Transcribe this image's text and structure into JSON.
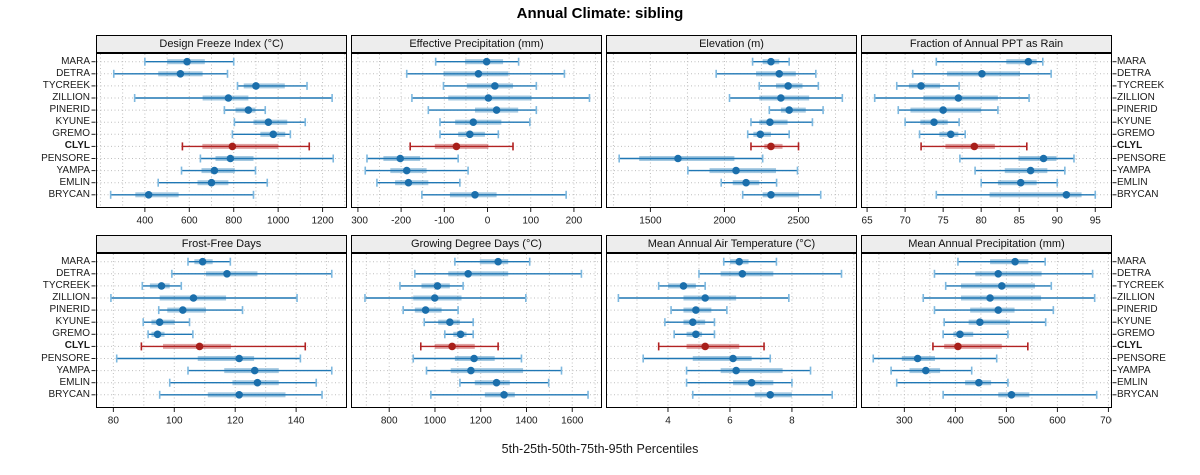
{
  "title": "Annual Climate: sibling",
  "footer": "5th-25th-50th-75th-95th Percentiles",
  "sites": [
    "MARA",
    "DETRA",
    "TYCREEK",
    "ZILLION",
    "PINERID",
    "KYUNE",
    "GREMO",
    "CLYL",
    "PENSORE",
    "YAMPA",
    "EMLIN",
    "BRYCAN"
  ],
  "highlight_site": "CLYL",
  "colors": {
    "series_line": "#1F77B4",
    "series_dot": "#1B6FAC",
    "series_cap": "#7DB8DF",
    "series_band": "rgba(31,119,180,0.40)",
    "highlight_line": "#B22222",
    "highlight_dot": "#A81F1A",
    "highlight_cap": "#B22222",
    "highlight_band": "rgba(178,34,34,0.42)",
    "panel_header_bg": "#EDEDED",
    "border": "#000000",
    "grid": "#BFBFBF",
    "tick": "#222222",
    "text": "#1a1a1a"
  },
  "chart_data": [
    {
      "type": "dot-interval",
      "title": "Design Freeze Index (°C)",
      "xlim": [
        180,
        1310
      ],
      "ticks": [
        400,
        600,
        800,
        1000,
        1200
      ],
      "grid_step": 100,
      "percentile_labels": [
        "5th",
        "25th",
        "50th",
        "75th",
        "95th"
      ],
      "values": [
        [
          400,
          500,
          590,
          670,
          800
        ],
        [
          260,
          460,
          560,
          660,
          772
        ],
        [
          817,
          845,
          900,
          1030,
          1130
        ],
        [
          354,
          660,
          776,
          866,
          1243
        ],
        [
          758,
          808,
          866,
          898,
          942
        ],
        [
          803,
          889,
          956,
          1041,
          1122
        ],
        [
          794,
          920,
          978,
          1032,
          1055
        ],
        [
          569,
          659,
          794,
          1001,
          1140
        ],
        [
          650,
          718,
          785,
          889,
          1248
        ],
        [
          565,
          655,
          713,
          805,
          898
        ],
        [
          460,
          637,
          700,
          776,
          951
        ],
        [
          246,
          357,
          417,
          552,
          889
        ]
      ]
    },
    {
      "type": "dot-interval",
      "title": "Effective Precipitation (mm)",
      "xlim": [
        -316,
        265
      ],
      "ticks": [
        -300,
        -200,
        -100,
        0,
        100,
        200
      ],
      "grid_step": 50,
      "values": [
        [
          -120,
          -52,
          -2,
          36,
          72
        ],
        [
          -187,
          -102,
          -21,
          48,
          178
        ],
        [
          -102,
          -48,
          17,
          59,
          113
        ],
        [
          -175,
          -91,
          2,
          102,
          236
        ],
        [
          -137,
          -29,
          21,
          71,
          113
        ],
        [
          -110,
          -75,
          -33,
          32,
          98
        ],
        [
          -110,
          -68,
          -41,
          -6,
          25
        ],
        [
          -179,
          -122,
          -72,
          2,
          59
        ],
        [
          -279,
          -241,
          -202,
          -156,
          -68
        ],
        [
          -283,
          -225,
          -187,
          -141,
          -45
        ],
        [
          -256,
          -214,
          -183,
          -137,
          -64
        ],
        [
          -152,
          -87,
          -29,
          21,
          182
        ]
      ]
    },
    {
      "type": "dot-interval",
      "title": "Elevation (m)",
      "xlim": [
        1200,
        2895
      ],
      "ticks": [
        1500,
        2000,
        2500
      ],
      "grid_step": 250,
      "values": [
        [
          2190,
          2258,
          2314,
          2370,
          2437
        ],
        [
          1944,
          2213,
          2370,
          2482,
          2617
        ],
        [
          2235,
          2348,
          2430,
          2527,
          2634
        ],
        [
          2034,
          2235,
          2381,
          2572,
          2796
        ],
        [
          2303,
          2381,
          2437,
          2549,
          2666
        ],
        [
          2179,
          2235,
          2307,
          2426,
          2594
        ],
        [
          2157,
          2195,
          2242,
          2314,
          2437
        ],
        [
          2179,
          2269,
          2314,
          2392,
          2500
        ],
        [
          1289,
          1424,
          1686,
          2067,
          2258
        ],
        [
          1753,
          1899,
          2078,
          2348,
          2493
        ],
        [
          1978,
          2056,
          2146,
          2235,
          2352
        ],
        [
          2123,
          2258,
          2314,
          2504,
          2650
        ]
      ]
    },
    {
      "type": "dot-interval",
      "title": "Fraction of Annual PPT as Rain",
      "xlim": [
        64.2,
        97.2
      ],
      "ticks": [
        65,
        70,
        75,
        80,
        85,
        90,
        95
      ],
      "grid_step": 2.5,
      "values": [
        [
          74.1,
          83.3,
          86.2,
          87.3,
          88.1
        ],
        [
          71,
          75.5,
          80.1,
          85.1,
          89.2
        ],
        [
          68.9,
          70.5,
          72.1,
          74.6,
          77.1
        ],
        [
          66,
          72.4,
          77,
          82.2,
          86.3
        ],
        [
          69.1,
          70.7,
          75,
          80,
          82.2
        ],
        [
          70,
          72,
          73.8,
          75.6,
          77.1
        ],
        [
          71.9,
          74.5,
          76,
          77,
          77.9
        ],
        [
          72.1,
          75.3,
          79.1,
          81.8,
          86
        ],
        [
          77.2,
          84.9,
          88.2,
          89.9,
          92.2
        ],
        [
          79.2,
          83.1,
          86.5,
          88.7,
          91
        ],
        [
          80,
          82.2,
          85.2,
          87.3,
          90
        ],
        [
          74.1,
          81.1,
          91.2,
          93.2,
          95
        ]
      ]
    },
    {
      "type": "dot-interval",
      "title": "Frost-Free Days",
      "xlim": [
        74.3,
        156.7
      ],
      "ticks": [
        80,
        100,
        120,
        140
      ],
      "grid_step": 10,
      "values": [
        [
          104.5,
          106.6,
          109.3,
          112.6,
          118.4
        ],
        [
          99.2,
          110.4,
          117.3,
          127.3,
          151.7
        ],
        [
          89.5,
          92,
          95.8,
          98.5,
          102.3
        ],
        [
          79.2,
          95.2,
          106.3,
          117,
          140.3
        ],
        [
          94.9,
          97.7,
          102.8,
          110.4,
          122.4
        ],
        [
          89.8,
          92.5,
          95.2,
          100.1,
          105
        ],
        [
          91.4,
          92.5,
          94.5,
          96.8,
          106.1
        ],
        [
          89.2,
          96.3,
          108.3,
          118.6,
          143
        ],
        [
          81.1,
          107.7,
          121.3,
          126.2,
          141.4
        ],
        [
          104.5,
          116.4,
          126.4,
          134.3,
          151.7
        ],
        [
          98.5,
          119.1,
          127.3,
          134.3,
          146.6
        ],
        [
          95.2,
          111,
          121.3,
          136.5,
          148.5
        ]
      ]
    },
    {
      "type": "dot-interval",
      "title": "Growing Degree Days (°C)",
      "xlim": [
        633,
        1730
      ],
      "ticks": [
        800,
        1000,
        1200,
        1400,
        1600
      ],
      "grid_step": 100,
      "values": [
        [
          1087,
          1196,
          1276,
          1320,
          1414
        ],
        [
          912,
          1058,
          1145,
          1320,
          1640
        ],
        [
          847,
          941,
          1011,
          1065,
          1123
        ],
        [
          694,
          905,
          999,
          1116,
          1397
        ],
        [
          861,
          912,
          959,
          1029,
          1101
        ],
        [
          953,
          1014,
          1065,
          1109,
          1167
        ],
        [
          1043,
          1080,
          1112,
          1138,
          1167
        ],
        [
          938,
          999,
          1075,
          1174,
          1276
        ],
        [
          905,
          1087,
          1171,
          1261,
          1378
        ],
        [
          963,
          1069,
          1157,
          1385,
          1553
        ],
        [
          1109,
          1174,
          1269,
          1327,
          1497
        ],
        [
          982,
          1218,
          1302,
          1349,
          1669
        ]
      ]
    },
    {
      "type": "dot-interval",
      "title": "Mean Annual Air Temperature (°C)",
      "xlim": [
        2.0,
        10.1
      ],
      "ticks": [
        4,
        6,
        8
      ],
      "grid_step": 1,
      "values": [
        [
          5.8,
          6.0,
          6.3,
          6.6,
          7.5
        ],
        [
          5.0,
          5.7,
          6.4,
          7.4,
          9.6
        ],
        [
          3.7,
          4.0,
          4.5,
          4.9,
          5.2
        ],
        [
          2.4,
          4.5,
          5.2,
          6.2,
          7.9
        ],
        [
          4.1,
          4.5,
          4.9,
          5.4,
          5.9
        ],
        [
          3.9,
          4.5,
          4.8,
          5.2,
          5.5
        ],
        [
          4.2,
          4.6,
          4.9,
          5.1,
          5.5
        ],
        [
          3.7,
          4.6,
          5.2,
          6.3,
          7.1
        ],
        [
          3.2,
          4.8,
          6.1,
          6.7,
          7.3
        ],
        [
          4.6,
          5.7,
          6.2,
          7.7,
          8.6
        ],
        [
          4.6,
          6.1,
          6.7,
          7.4,
          8.0
        ],
        [
          4.8,
          6.8,
          7.3,
          8.0,
          9.3
        ]
      ]
    },
    {
      "type": "dot-interval",
      "title": "Mean Annual Precipitation (mm)",
      "xlim": [
        215,
        707
      ],
      "ticks": [
        300,
        400,
        500,
        600,
        700
      ],
      "grid_step": 50,
      "values": [
        [
          405,
          468,
          517,
          543,
          576
        ],
        [
          359,
          439,
          484,
          569,
          669
        ],
        [
          381,
          411,
          491,
          556,
          588
        ],
        [
          337,
          411,
          468,
          568,
          673
        ],
        [
          359,
          429,
          484,
          516,
          592
        ],
        [
          378,
          426,
          448,
          507,
          577
        ],
        [
          376,
          396,
          409,
          435,
          503
        ],
        [
          356,
          378,
          405,
          491,
          542
        ],
        [
          239,
          295,
          326,
          360,
          481
        ],
        [
          274,
          310,
          342,
          370,
          432
        ],
        [
          285,
          419,
          446,
          470,
          503
        ],
        [
          376,
          484,
          510,
          545,
          677
        ]
      ]
    }
  ]
}
